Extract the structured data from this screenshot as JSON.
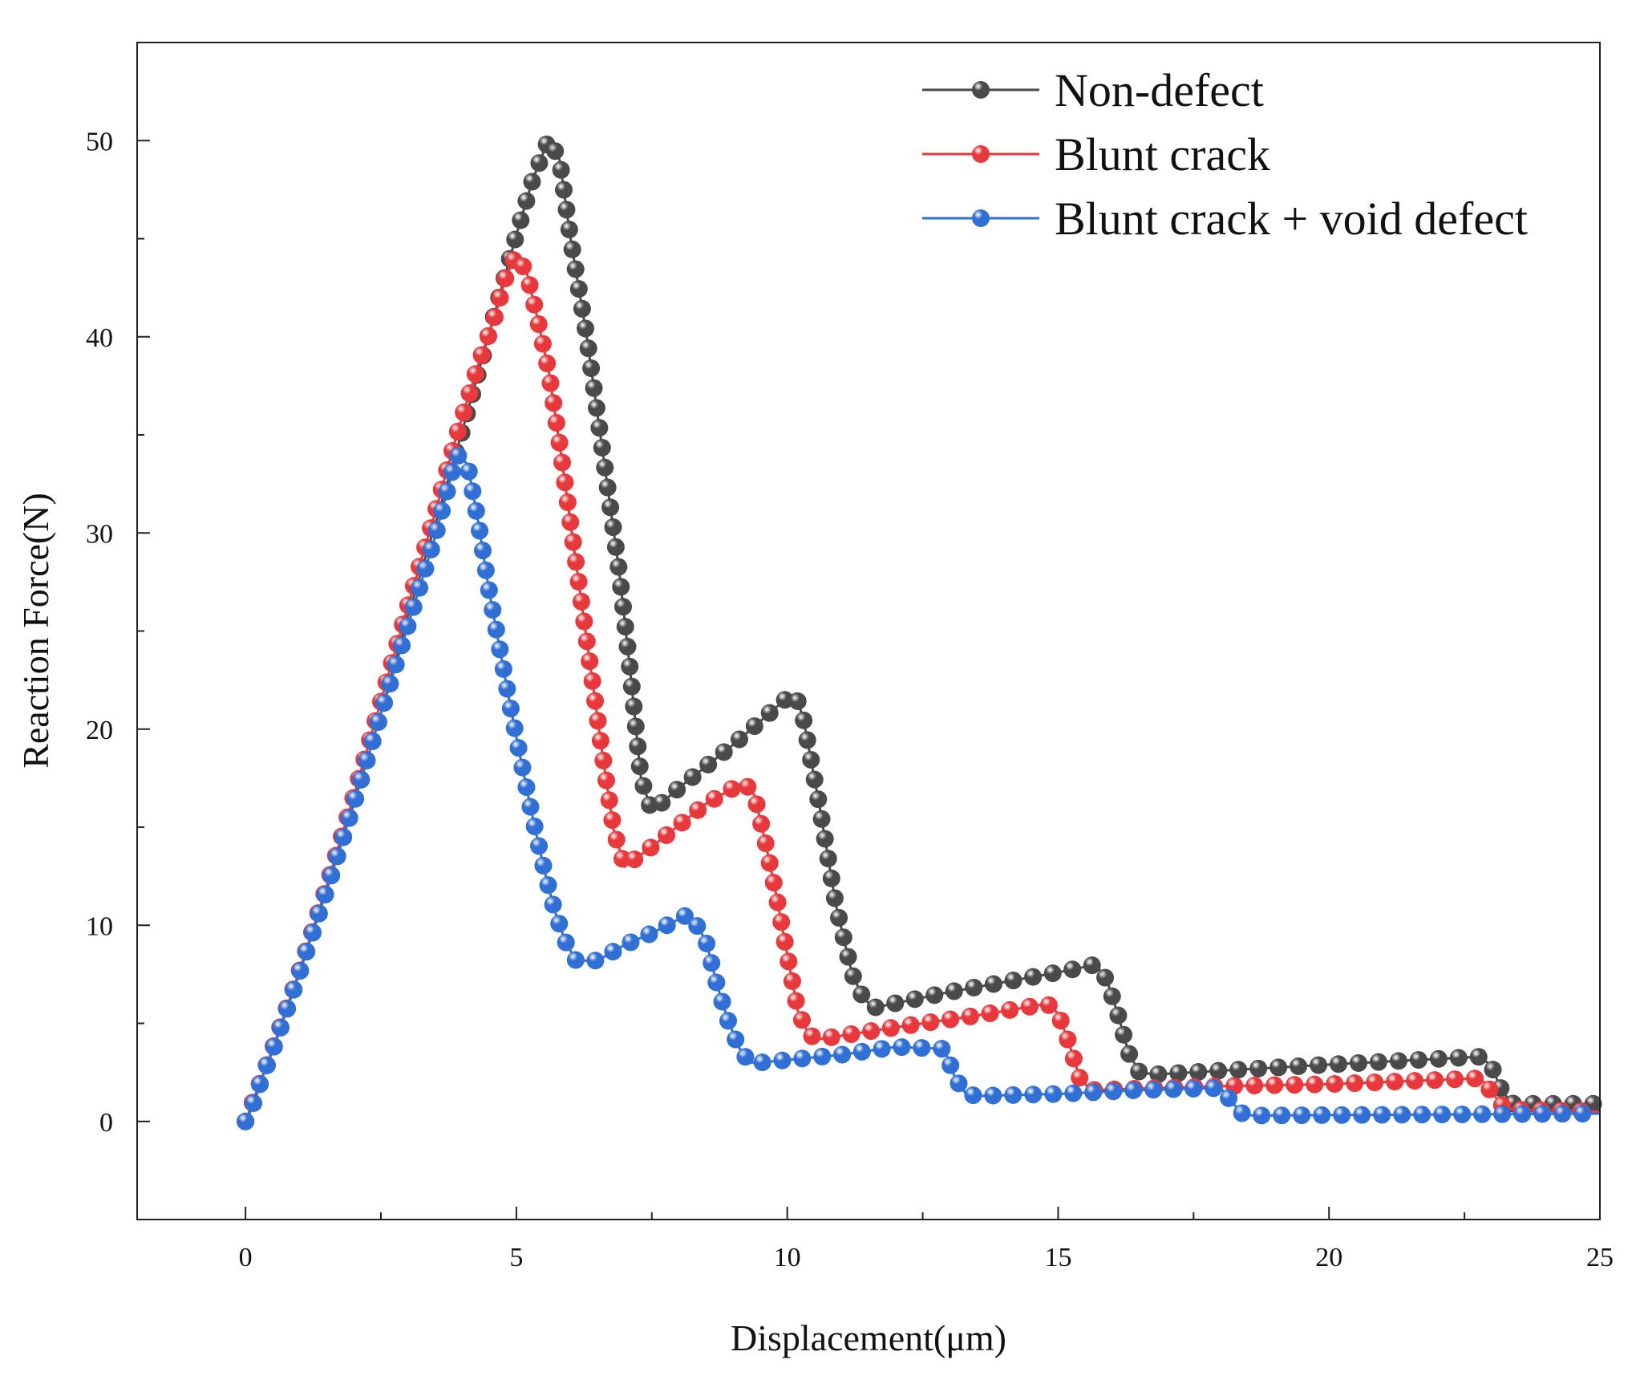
{
  "chart_data": {
    "type": "line",
    "title": "",
    "xlabel": "Displacement(μm)",
    "ylabel": "Reaction Force(N)",
    "xlim": [
      -2,
      25
    ],
    "ylim": [
      -5,
      55
    ],
    "xticks": [
      0,
      5,
      10,
      15,
      20,
      25
    ],
    "xtick_labels": [
      "0",
      "5",
      "10",
      "15",
      "20",
      "25"
    ],
    "yticks": [
      0,
      10,
      20,
      30,
      40,
      50
    ],
    "ytick_labels": [
      "0",
      "10",
      "20",
      "30",
      "40",
      "50"
    ],
    "grid": false,
    "legend_position": "top-right",
    "series": [
      {
        "name": "Non-defect",
        "color": "#4a4a4a",
        "points": [
          [
            0,
            0
          ],
          [
            0.5,
            3.6
          ],
          [
            1,
            7.6
          ],
          [
            1.5,
            11.8
          ],
          [
            2,
            16.2
          ],
          [
            2.5,
            20.8
          ],
          [
            3,
            25.8
          ],
          [
            3.5,
            30.4
          ],
          [
            4,
            35.2
          ],
          [
            4.5,
            40.2
          ],
          [
            5,
            45.2
          ],
          [
            5.3,
            48
          ],
          [
            5.6,
            50.1
          ],
          [
            5.8,
            49
          ],
          [
            6,
            45
          ],
          [
            6.3,
            40
          ],
          [
            6.6,
            34
          ],
          [
            6.9,
            28
          ],
          [
            7.1,
            23
          ],
          [
            7.3,
            17.5
          ],
          [
            7.5,
            15.8
          ],
          [
            8,
            17
          ],
          [
            9,
            19.2
          ],
          [
            10,
            21.6
          ],
          [
            10.15,
            21.8
          ],
          [
            10.3,
            20.5
          ],
          [
            10.6,
            16
          ],
          [
            10.9,
            11
          ],
          [
            11.2,
            7.5
          ],
          [
            11.4,
            6.3
          ],
          [
            11.6,
            5.8
          ],
          [
            13,
            6.6
          ],
          [
            14,
            7.1
          ],
          [
            15,
            7.6
          ],
          [
            15.7,
            8.0
          ],
          [
            15.9,
            7.2
          ],
          [
            16.1,
            5.5
          ],
          [
            16.3,
            3.5
          ],
          [
            16.5,
            2.5
          ],
          [
            16.8,
            2.4
          ],
          [
            20,
            2.9
          ],
          [
            22.8,
            3.3
          ],
          [
            23,
            2.8
          ],
          [
            23.2,
            1.5
          ],
          [
            23.4,
            0.9
          ],
          [
            25,
            0.9
          ]
        ]
      },
      {
        "name": "Blunt crack",
        "color": "#e8383b",
        "points": [
          [
            0,
            0
          ],
          [
            0.5,
            3.7
          ],
          [
            1,
            7.7
          ],
          [
            1.5,
            12
          ],
          [
            2,
            16.6
          ],
          [
            2.5,
            21.4
          ],
          [
            3,
            26.3
          ],
          [
            3.5,
            31
          ],
          [
            3.9,
            35
          ],
          [
            4.3,
            38.6
          ],
          [
            4.6,
            41
          ],
          [
            4.8,
            43
          ],
          [
            5,
            44.2
          ],
          [
            5.2,
            43.2
          ],
          [
            5.4,
            40.8
          ],
          [
            5.6,
            38.2
          ],
          [
            5.8,
            34.5
          ],
          [
            6,
            30.5
          ],
          [
            6.2,
            26.5
          ],
          [
            6.4,
            22.5
          ],
          [
            6.6,
            18.5
          ],
          [
            6.8,
            14.8
          ],
          [
            7,
            13
          ],
          [
            7.5,
            14
          ],
          [
            8.5,
            16.2
          ],
          [
            9.2,
            17.3
          ],
          [
            9.4,
            16.6
          ],
          [
            9.6,
            14.2
          ],
          [
            9.8,
            11.5
          ],
          [
            10,
            8.5
          ],
          [
            10.2,
            5.6
          ],
          [
            10.4,
            4.4
          ],
          [
            10.6,
            4.2
          ],
          [
            12,
            4.8
          ],
          [
            13.5,
            5.4
          ],
          [
            14.8,
            6.0
          ],
          [
            15,
            5.5
          ],
          [
            15.2,
            4.0
          ],
          [
            15.4,
            2.2
          ],
          [
            15.6,
            1.6
          ],
          [
            18,
            1.8
          ],
          [
            20,
            1.9
          ],
          [
            22.8,
            2.2
          ],
          [
            23,
            1.5
          ],
          [
            23.2,
            0.8
          ],
          [
            23.4,
            0.6
          ],
          [
            25,
            0.5
          ]
        ]
      },
      {
        "name": "Blunt crack + void defect",
        "color": "#2f6fd6",
        "points": [
          [
            0,
            0
          ],
          [
            0.05,
            0.2
          ],
          [
            0.1,
            0.6
          ],
          [
            0.2,
            1.3
          ],
          [
            0.3,
            2.2
          ],
          [
            0.5,
            3.6
          ],
          [
            1,
            7.6
          ],
          [
            1.5,
            11.8
          ],
          [
            2,
            16.2
          ],
          [
            2.5,
            20.8
          ],
          [
            3,
            25.3
          ],
          [
            3.5,
            29.8
          ],
          [
            3.9,
            34.0
          ],
          [
            4.1,
            33.5
          ],
          [
            4.3,
            30.5
          ],
          [
            4.5,
            27
          ],
          [
            4.7,
            24
          ],
          [
            4.9,
            21
          ],
          [
            5.1,
            18.2
          ],
          [
            5.3,
            15.5
          ],
          [
            5.5,
            13
          ],
          [
            5.7,
            10.8
          ],
          [
            5.9,
            9.2
          ],
          [
            6.1,
            8.2
          ],
          [
            6.5,
            8.2
          ],
          [
            7,
            9
          ],
          [
            7.5,
            9.6
          ],
          [
            8.2,
            10.6
          ],
          [
            8.5,
            9.2
          ],
          [
            8.7,
            7.0
          ],
          [
            8.9,
            5.2
          ],
          [
            9.1,
            3.8
          ],
          [
            9.3,
            3.0
          ],
          [
            9.5,
            3.0
          ],
          [
            11,
            3.4
          ],
          [
            12,
            3.8
          ],
          [
            12.9,
            3.7
          ],
          [
            13.1,
            2.2
          ],
          [
            13.3,
            1.4
          ],
          [
            13.5,
            1.3
          ],
          [
            15,
            1.4
          ],
          [
            16.5,
            1.6
          ],
          [
            18,
            1.7
          ],
          [
            18.2,
            1.0
          ],
          [
            18.4,
            0.4
          ],
          [
            18.6,
            0.3
          ],
          [
            25,
            0.4
          ]
        ]
      }
    ]
  }
}
